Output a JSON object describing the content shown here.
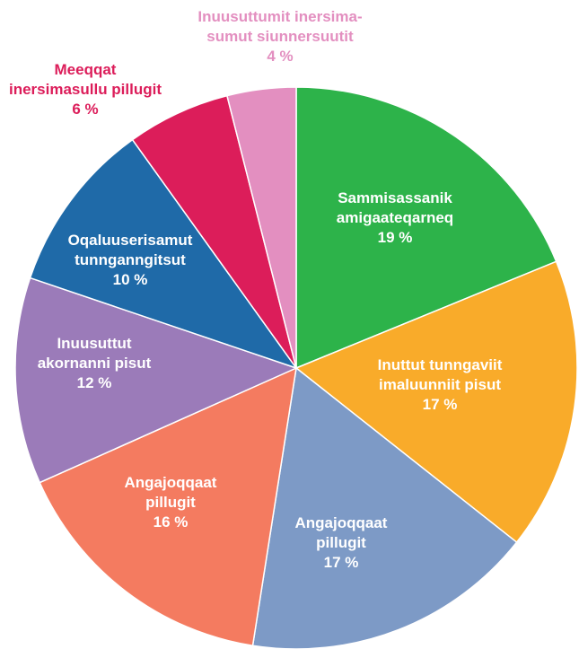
{
  "chart_data": {
    "type": "pie",
    "categories": [
      "Sammisassanik\namigaateqarneq",
      "Inuttut tunngaviit\nimaluunniit pisut",
      "Angajoqqaat\npillugit",
      "Angajoqqaat\npillugit",
      "Inuusuttut\nakornanni pisut",
      "Oqaluuserisamut\ntunnganngitsut",
      "Meeqqat\ninersimasullu pillugit",
      "Inuusuttumit inersima-\nsumut siunnersuutit"
    ],
    "values": [
      19,
      17,
      17,
      16,
      12,
      10,
      6,
      4
    ],
    "value_labels": [
      "19 %",
      "17 %",
      "17 %",
      "16 %",
      "12 %",
      "10 %",
      "6 %",
      "4 %"
    ],
    "colors": [
      "#2db34a",
      "#f9ab2a",
      "#7d9ac6",
      "#f47b60",
      "#9b7bb9",
      "#1f6aa8",
      "#dc1d5a",
      "#e38fc0"
    ]
  }
}
